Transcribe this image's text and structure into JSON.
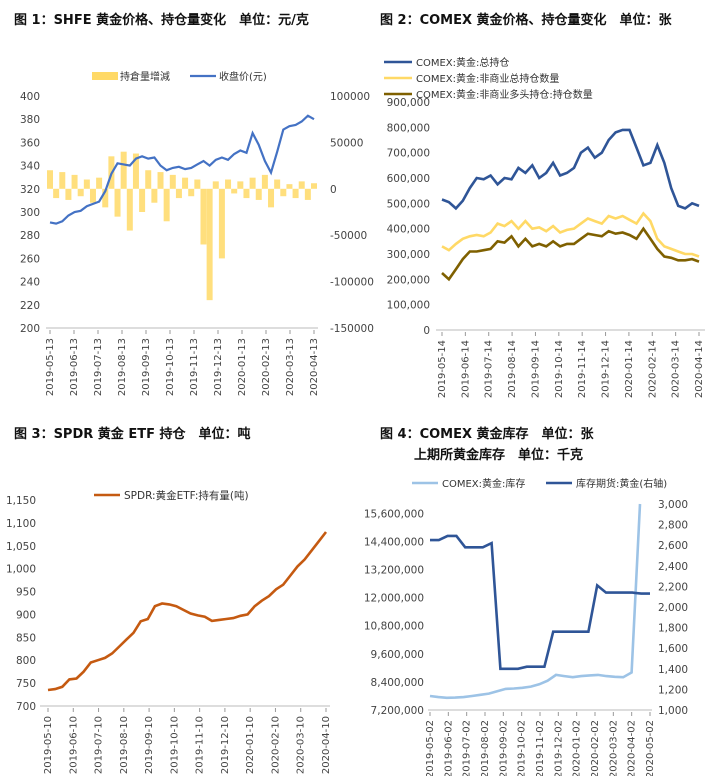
{
  "captions": {
    "fig1": "图 1：SHFE 黄金价格、持仓量变化　单位：元/克",
    "fig2": "图 2：COMEX 黄金价格、持仓量变化　单位：张",
    "fig3": "图 3：SPDR 黄金 ETF 持仓　单位：吨",
    "fig4a": "图 4：COMEX 黄金库存　单位：张",
    "fig4b": "上期所黄金库存　单位：千克"
  },
  "chart_data": [
    {
      "id": "fig1",
      "type": "bar+line",
      "legend": [
        "持倉量增減",
        "收盘价(元)"
      ],
      "x_ticks": [
        "2019-05-13",
        "2019-06-13",
        "2019-07-13",
        "2019-08-13",
        "2019-09-13",
        "2019-10-13",
        "2019-11-13",
        "2019-12-13",
        "2020-01-13",
        "2020-02-13",
        "2020-03-13",
        "2020-04-13"
      ],
      "ylim_left": [
        200,
        400
      ],
      "yticks_left": [
        "200",
        "220",
        "240",
        "260",
        "280",
        "300",
        "320",
        "340",
        "360",
        "380",
        "400"
      ],
      "ylim_right": [
        -150000,
        100000
      ],
      "yticks_right": [
        "-150000",
        "-100000",
        "-50000",
        "0",
        "50000",
        "100000"
      ],
      "series_price": [
        291,
        290,
        292,
        297,
        300,
        301,
        305,
        307,
        309,
        318,
        333,
        342,
        341,
        340,
        346,
        348,
        346,
        347,
        340,
        336,
        338,
        339,
        337,
        338,
        341,
        344,
        340,
        345,
        347,
        345,
        350,
        353,
        351,
        368,
        358,
        344,
        334,
        352,
        371,
        374,
        375,
        378,
        383,
        380
      ],
      "series_oi_change": [
        20000,
        -10000,
        18000,
        -12000,
        15000,
        -8000,
        10000,
        -15000,
        12000,
        -20000,
        35000,
        -30000,
        40000,
        -45000,
        38000,
        -25000,
        20000,
        -15000,
        18000,
        -35000,
        15000,
        -10000,
        12000,
        -8000,
        10000,
        -60000,
        -120000,
        8000,
        -75000,
        10000,
        -5000,
        8000,
        -10000,
        12000,
        -12000,
        15000,
        -20000,
        10000,
        -8000,
        5000,
        -10000,
        8000,
        -12000,
        6000
      ],
      "colors": {
        "price": "#4472c4",
        "oi": "#ffd966"
      }
    },
    {
      "id": "fig2",
      "type": "line",
      "legend": [
        "COMEX:黄金:总持仓",
        "COMEX:黄金:非商业总持仓数量",
        "COMEX:黄金:非商业多头持仓:持仓数量"
      ],
      "x_ticks": [
        "2019-05-14",
        "2019-06-14",
        "2019-07-14",
        "2019-08-14",
        "2019-09-14",
        "2019-10-14",
        "2019-11-14",
        "2019-12-14",
        "2020-01-14",
        "2020-02-14",
        "2020-03-14",
        "2020-04-14"
      ],
      "ylim": [
        0,
        900000
      ],
      "yticks": [
        "0",
        "100,000",
        "200,000",
        "300,000",
        "400,000",
        "500,000",
        "600,000",
        "700,000",
        "800,000",
        "900,000"
      ],
      "series": [
        {
          "name": "COMEX:黄金:总持仓",
          "values": [
            515000,
            505000,
            480000,
            510000,
            560000,
            600000,
            595000,
            610000,
            575000,
            600000,
            595000,
            640000,
            620000,
            650000,
            600000,
            620000,
            660000,
            610000,
            620000,
            640000,
            700000,
            720000,
            680000,
            700000,
            750000,
            780000,
            790000,
            790000,
            720000,
            650000,
            660000,
            730000,
            660000,
            560000,
            490000,
            480000,
            500000,
            490000
          ]
        },
        {
          "name": "COMEX:黄金:非商业总持仓数量",
          "values": [
            330000,
            315000,
            340000,
            360000,
            370000,
            375000,
            370000,
            385000,
            420000,
            410000,
            430000,
            400000,
            430000,
            400000,
            405000,
            390000,
            410000,
            385000,
            395000,
            400000,
            420000,
            440000,
            430000,
            420000,
            450000,
            440000,
            450000,
            435000,
            420000,
            460000,
            430000,
            360000,
            330000,
            320000,
            310000,
            300000,
            300000,
            290000
          ]
        },
        {
          "name": "COMEX:黄金:非商业多头持仓:持仓数量",
          "values": [
            225000,
            200000,
            240000,
            280000,
            310000,
            310000,
            315000,
            320000,
            350000,
            345000,
            370000,
            330000,
            360000,
            330000,
            340000,
            330000,
            350000,
            330000,
            340000,
            340000,
            360000,
            380000,
            375000,
            370000,
            390000,
            380000,
            385000,
            375000,
            360000,
            400000,
            360000,
            320000,
            290000,
            285000,
            275000,
            275000,
            280000,
            270000
          ]
        }
      ],
      "colors": [
        "#2f5597",
        "#ffd966",
        "#7f6000"
      ]
    },
    {
      "id": "fig3",
      "type": "line",
      "legend": [
        "SPDR:黄金ETF:持有量(吨)"
      ],
      "x_ticks": [
        "2019-05-10",
        "2019-06-10",
        "2019-07-10",
        "2019-08-10",
        "2019-09-10",
        "2019-10-10",
        "2019-11-10",
        "2019-12-10",
        "2020-01-10",
        "2020-02-10",
        "2020-03-10",
        "2020-04-10"
      ],
      "ylim": [
        700,
        1150
      ],
      "yticks": [
        "700",
        "750",
        "800",
        "850",
        "900",
        "950",
        "1,000",
        "1,050",
        "1,100",
        "1,150"
      ],
      "series": [
        {
          "name": "SPDR:黄金ETF:持有量(吨)",
          "values": [
            735,
            737,
            742,
            758,
            760,
            775,
            795,
            800,
            805,
            815,
            830,
            845,
            860,
            885,
            890,
            918,
            924,
            922,
            918,
            910,
            902,
            898,
            895,
            886,
            888,
            890,
            892,
            897,
            900,
            918,
            930,
            940,
            955,
            965,
            985,
            1005,
            1020,
            1040,
            1060,
            1080
          ]
        }
      ],
      "colors": [
        "#c55a11"
      ]
    },
    {
      "id": "fig4",
      "type": "line",
      "legend": [
        "COMEX:黄金:库存",
        "库存期货:黄金(右轴)"
      ],
      "x_ticks": [
        "2019-05-02",
        "2019-06-02",
        "2019-07-02",
        "2019-08-02",
        "2019-09-02",
        "2019-10-02",
        "2019-11-02",
        "2019-12-02",
        "2020-01-02",
        "2020-02-02",
        "2020-03-02",
        "2020-04-02",
        "2020-05-02"
      ],
      "ylim_left": [
        7200000,
        16000000
      ],
      "yticks_left": [
        "7,200,000",
        "8,400,000",
        "9,600,000",
        "10,800,000",
        "12,000,000",
        "13,200,000",
        "14,400,000",
        "15,600,000"
      ],
      "ylim_right": [
        1000,
        3000
      ],
      "yticks_right": [
        "1,000",
        "1,200",
        "1,400",
        "1,600",
        "1,800",
        "2,000",
        "2,200",
        "2,400",
        "2,600",
        "2,800",
        "3,000"
      ],
      "series": [
        {
          "name": "COMEX:黄金:库存",
          "values": [
            7800000,
            7750000,
            7720000,
            7730000,
            7750000,
            7800000,
            7850000,
            7900000,
            8000000,
            8100000,
            8120000,
            8150000,
            8200000,
            8300000,
            8450000,
            8700000,
            8650000,
            8600000,
            8650000,
            8680000,
            8700000,
            8650000,
            8620000,
            8600000,
            8800000,
            16000000
          ]
        },
        {
          "name": "库存期货:黄金(右轴)",
          "values": [
            2650,
            2650,
            2690,
            2690,
            2580,
            2580,
            2580,
            2620,
            1400,
            1400,
            1400,
            1420,
            1420,
            1420,
            1760,
            1760,
            1760,
            1760,
            1760,
            2210,
            2140,
            2140,
            2140,
            2140,
            2130,
            2130
          ]
        }
      ],
      "colors": [
        "#9dc3e6",
        "#2f5597"
      ]
    }
  ]
}
